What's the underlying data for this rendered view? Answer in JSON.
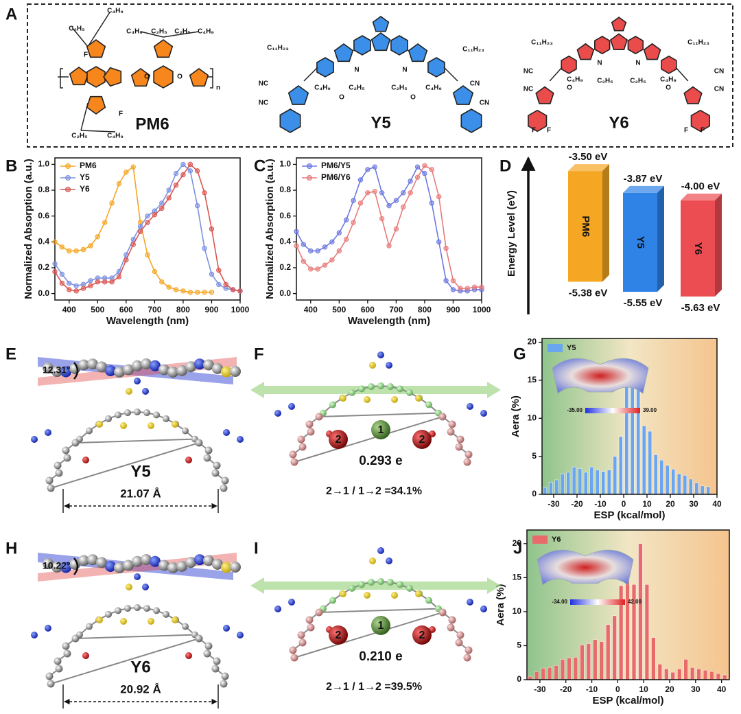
{
  "panel_labels": [
    "A",
    "B",
    "C",
    "D",
    "E",
    "F",
    "G",
    "H",
    "I",
    "J"
  ],
  "structures": [
    {
      "name": "PM6",
      "color": "#f7861d",
      "labels": [
        "C₂H₅",
        "C₄H₉",
        "F",
        "C₄H₉",
        "C₂H₅",
        "C₂H₅",
        "C₄H₉",
        "O",
        "O",
        "F",
        "C₂H₅",
        "C₄H₉",
        "n"
      ]
    },
    {
      "name": "Y5",
      "color": "#3b8fe8",
      "labels": [
        "C₁₁H₂₃",
        "C₁₁H₂₃",
        "N",
        "N",
        "C₄H₉",
        "C₂H₅",
        "C₂H₅",
        "C₄H₉",
        "NC",
        "NC",
        "CN",
        "CN",
        "O",
        "O"
      ]
    },
    {
      "name": "Y6",
      "color": "#ea4b4b",
      "labels": [
        "C₁₁H₂₃",
        "C₁₁H₂₃",
        "N",
        "N",
        "C₄H₉",
        "C₂H₅",
        "C₂H₅",
        "C₄H₉",
        "NC",
        "NC",
        "CN",
        "CN",
        "O",
        "O",
        "F",
        "F",
        "F",
        "F"
      ]
    }
  ],
  "geometry": [
    {
      "angle": "12.31°",
      "name": "Y5",
      "color": "#2f7de0",
      "length": "21.07 Å"
    },
    {
      "angle": "10.22°",
      "name": "Y6",
      "color": "#e84a4a",
      "length": "20.92 Å"
    }
  ],
  "charge_transfer": [
    {
      "sites": [
        "2",
        "1",
        "2"
      ],
      "charge": "0.293 e",
      "ratio": "2→1 / 1→2 =34.1%"
    },
    {
      "sites": [
        "2",
        "1",
        "2"
      ],
      "charge": "0.210 e",
      "ratio": "2→1 / 1→2 =39.5%"
    }
  ],
  "chart_data": [
    {
      "type": "line",
      "xlabel": "Wavelength (nm)",
      "ylabel": "Normalized Absorption (a.u.)",
      "x": [
        350,
        375,
        400,
        425,
        450,
        475,
        500,
        525,
        550,
        575,
        600,
        625,
        650,
        675,
        700,
        725,
        750,
        775,
        800,
        825,
        850,
        875,
        900,
        925,
        950,
        975,
        1000
      ],
      "series": [
        {
          "name": "PM6",
          "color": "#f5a623",
          "values": [
            0.4,
            0.36,
            0.33,
            0.33,
            0.34,
            0.37,
            0.44,
            0.55,
            0.7,
            0.85,
            0.94,
            0.98,
            0.55,
            0.3,
            0.17,
            0.09,
            0.05,
            0.03,
            0.02,
            0.01,
            0.01,
            0.01,
            0.01,
            null,
            null,
            null,
            null
          ]
        },
        {
          "name": "Y5",
          "color": "#7b8fe0",
          "values": [
            0.23,
            0.15,
            0.08,
            0.06,
            0.07,
            0.1,
            0.12,
            0.12,
            0.12,
            0.17,
            0.3,
            0.42,
            0.52,
            0.6,
            0.64,
            0.7,
            0.8,
            0.93,
            1.0,
            0.95,
            0.68,
            0.35,
            0.15,
            0.07,
            0.04,
            0.03,
            0.02
          ]
        },
        {
          "name": "Y6",
          "color": "#d9534f",
          "values": [
            0.17,
            0.08,
            0.03,
            0.02,
            0.04,
            0.06,
            0.09,
            0.09,
            0.09,
            0.13,
            0.26,
            0.38,
            0.48,
            0.55,
            0.61,
            0.66,
            0.74,
            0.84,
            0.92,
            1.0,
            0.95,
            0.78,
            0.5,
            0.18,
            0.07,
            0.03,
            0.02
          ]
        }
      ],
      "xlim": [
        350,
        1000
      ],
      "xticks": [
        400,
        500,
        600,
        700,
        800,
        900,
        1000
      ],
      "ylim": [
        -0.05,
        1.05
      ],
      "yticks": [
        {
          "value": 0,
          "label": "0.0"
        },
        0.2,
        0.4,
        0.6,
        0.8,
        {
          "value": 1,
          "label": "1.0"
        }
      ],
      "legend": "upper left"
    },
    {
      "type": "line",
      "xlabel": "Wavelength (nm)",
      "ylabel": "Normalized Absorption (a.u.)",
      "x": [
        350,
        375,
        400,
        425,
        450,
        475,
        500,
        525,
        550,
        575,
        600,
        625,
        650,
        675,
        700,
        725,
        750,
        775,
        800,
        825,
        850,
        875,
        900,
        925,
        950,
        975,
        1000
      ],
      "series": [
        {
          "name": "PM6/Y5",
          "color": "#6d78e0",
          "values": [
            0.48,
            0.38,
            0.33,
            0.33,
            0.36,
            0.4,
            0.47,
            0.57,
            0.72,
            0.88,
            0.96,
            0.98,
            0.78,
            0.68,
            0.72,
            0.78,
            0.87,
            0.98,
            0.93,
            0.7,
            0.4,
            0.1,
            0.03,
            0.02,
            0.02,
            0.03,
            0.03
          ]
        },
        {
          "name": "PM6/Y6",
          "color": "#e77a7a",
          "values": [
            0.37,
            0.25,
            0.19,
            0.19,
            0.22,
            0.26,
            0.33,
            0.42,
            0.55,
            0.7,
            0.78,
            0.79,
            0.58,
            0.37,
            0.5,
            0.67,
            0.78,
            0.9,
            0.99,
            0.96,
            0.75,
            0.35,
            0.1,
            0.04,
            0.04,
            0.05,
            0.05
          ]
        }
      ],
      "xlim": [
        350,
        1000
      ],
      "xticks": [
        400,
        500,
        600,
        700,
        800,
        900,
        1000
      ],
      "ylim": [
        -0.05,
        1.05
      ],
      "yticks": [
        {
          "value": 0,
          "label": "0.0"
        },
        0.2,
        0.4,
        0.6,
        0.8,
        {
          "value": 1,
          "label": "1.0"
        }
      ],
      "legend": "upper left"
    },
    {
      "type": "energy",
      "ylabel": "Energy Level (eV)",
      "ylim": [
        -5.9,
        -3.3
      ],
      "series": [
        {
          "name": "PM6",
          "color": "#f5a623",
          "label_color": "#f0a030",
          "values": [
            -3.5,
            -5.38
          ],
          "value_labels": [
            "-3.50 eV",
            "-5.38 eV"
          ]
        },
        {
          "name": "Y5",
          "color": "#2f82e6",
          "label_color": "#2f6fd8",
          "values": [
            -3.87,
            -5.55
          ],
          "value_labels": [
            "-3.87 eV",
            "-5.55 eV"
          ]
        },
        {
          "name": "Y6",
          "color": "#ec4d52",
          "label_color": "#e84a4a",
          "values": [
            -4.0,
            -5.63
          ],
          "value_labels": [
            "-4.00 eV",
            "-5.63 eV"
          ]
        }
      ]
    },
    {
      "type": "histogram",
      "xlabel": "ESP (kcal/mol)",
      "ylabel": "Aera (%)",
      "series_name": "Y5",
      "color": "#6aa5f0",
      "bins": [
        -35,
        -32.5,
        -30,
        -27.5,
        -25,
        -22.5,
        -20,
        -17.5,
        -15,
        -12.5,
        -10,
        -7.5,
        -5,
        -2.5,
        0,
        2.5,
        5,
        7.5,
        10,
        12.5,
        15,
        17.5,
        20,
        22.5,
        25,
        27.5,
        30,
        32.5,
        35,
        37.5
      ],
      "values": [
        0.9,
        1.6,
        1.9,
        2.7,
        2.9,
        3.6,
        3.4,
        2.9,
        3.6,
        3.2,
        3.0,
        3.2,
        5.0,
        7.6,
        16.8,
        17.6,
        14.7,
        9.0,
        8.3,
        5.2,
        4.5,
        3.8,
        3.3,
        2.7,
        2.5,
        2.0,
        1.5,
        1.1,
        1.0
      ],
      "xlim": [
        -35,
        40
      ],
      "xticks": [
        -30,
        -20,
        -10,
        0,
        10,
        20,
        30,
        40
      ],
      "ylim": [
        0,
        20.5
      ],
      "yticks": [
        0,
        5,
        10,
        15,
        20
      ],
      "inset_labels": [
        "-35.00",
        "39.00"
      ]
    },
    {
      "type": "histogram",
      "xlabel": "ESP (kcal/mol)",
      "ylabel": "Aera (%)",
      "series_name": "Y6",
      "color": "#e86a6a",
      "bins": [
        -35,
        -32.5,
        -30,
        -27.5,
        -25,
        -22.5,
        -20,
        -17.5,
        -15,
        -12.5,
        -10,
        -7.5,
        -5,
        -2.5,
        0,
        2.5,
        5,
        7.5,
        10,
        12.5,
        15,
        17.5,
        20,
        22.5,
        25,
        27.5,
        30,
        32.5,
        35,
        37.5,
        40,
        42.5
      ],
      "values": [
        0.5,
        1.2,
        1.7,
        1.8,
        2.1,
        3.0,
        3.2,
        3.3,
        5.1,
        5.3,
        5.9,
        5.6,
        8.1,
        9.4,
        13.8,
        16.8,
        14.0,
        20.0,
        14.0,
        6.2,
        2.3,
        1.6,
        1.1,
        1.6,
        3.0,
        1.8,
        1.6,
        1.4,
        1.2,
        0.9,
        0.7
      ],
      "xlim": [
        -35,
        43
      ],
      "xticks": [
        -30,
        -20,
        -10,
        0,
        10,
        20,
        30,
        40
      ],
      "ylim": [
        0,
        22
      ],
      "yticks": [
        0,
        5,
        10,
        15,
        20
      ],
      "inset_labels": [
        "-34.00",
        "42.00"
      ]
    }
  ]
}
